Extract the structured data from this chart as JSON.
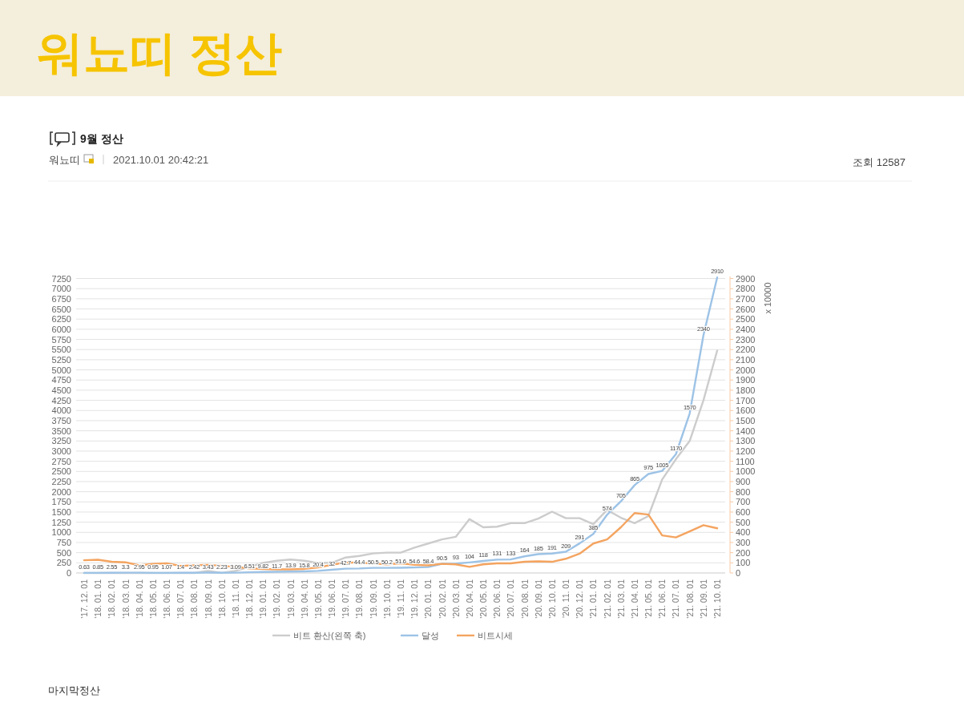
{
  "chart_data": {
    "type": "line",
    "title": "워뇨띠 정산",
    "subtitle": "9월 정산",
    "annotations": [
      "워뇨띠",
      "2021.10.01 20:42:21",
      "조회 12587",
      "마지막정산"
    ],
    "categories": [
      "'17. 12. 01",
      "'18. 01. 01",
      "'18. 02. 01",
      "'18. 03. 01",
      "'18. 04. 01",
      "'18. 05. 01",
      "'18. 06. 01",
      "'18. 07. 01",
      "'18. 08. 01",
      "'18. 09. 01",
      "'18. 10. 01",
      "'18. 11. 01",
      "'18. 12. 01",
      "'19. 01. 01",
      "'19. 02. 01",
      "'19. 03. 01",
      "'19. 04. 01",
      "'19. 05. 01",
      "'19. 06. 01",
      "'19. 07. 01",
      "'19. 08. 01",
      "'19. 09. 01",
      "'19. 10. 01",
      "'19. 11. 01",
      "'19. 12. 01",
      "'20. 01. 01",
      "'20. 02. 01",
      "'20. 03. 01",
      "'20. 04. 01",
      "'20. 05. 01",
      "'20. 06. 01",
      "'20. 07. 01",
      "'20. 08. 01",
      "'20. 09. 01",
      "'20. 10. 01",
      "'20. 11. 01",
      "'20. 12. 01",
      "'21. 01. 01",
      "'21. 02. 01",
      "'21. 03. 01",
      "'21. 04. 01",
      "'21. 05. 01",
      "'21. 06. 01",
      "'21. 07. 01",
      "'21. 08. 01",
      "'21. 09. 01",
      "'21. 10. 01"
    ],
    "series": [
      {
        "name": "비트 환산(왼쪽 축)",
        "color": "#cccccc",
        "values": [
          0,
          0,
          0,
          0,
          0,
          0,
          0,
          0,
          0,
          50,
          0,
          50,
          150,
          250,
          300,
          330,
          300,
          250,
          250,
          380,
          420,
          480,
          500,
          500,
          625,
          725,
          825,
          890,
          1325,
          1125,
          1140,
          1225,
          1225,
          1340,
          1510,
          1350,
          1350,
          1200,
          1550,
          1360,
          1225,
          1400,
          2300,
          2800,
          3250,
          4250,
          5475
        ]
      },
      {
        "name": "달성",
        "color": "#9dc3e6",
        "axis": "y2",
        "values": [
          0.63,
          0.85,
          2.55,
          3.3,
          2.95,
          0.95,
          1.07,
          1.4,
          2.42,
          3.43,
          2.23,
          3.09,
          6.51,
          9.82,
          11.7,
          13.9,
          15.8,
          20.4,
          32,
          42.7,
          44.4,
          50.5,
          50.2,
          51.6,
          54.6,
          58.4,
          90.5,
          93,
          104,
          118,
          131,
          133,
          164,
          185,
          191,
          209,
          291,
          385,
          574,
          705,
          865,
          975,
          1005,
          1170,
          1570,
          2340,
          2910
        ],
        "value_labels": [
          "0.63",
          "0.85",
          "2.55",
          "3.3",
          "2.95",
          "0.95",
          "1.07",
          "1.4",
          "2.42",
          "3.43",
          "2.23",
          "3.09",
          "6.51",
          "9.82",
          "11.7",
          "13.9",
          "15.8",
          "20.4",
          "32",
          "42.7",
          "44.4",
          "50.5",
          "50.2",
          "51.6",
          "54.6",
          "58.4",
          "90.5",
          "93",
          "104",
          "118",
          "131",
          "133",
          "164",
          "185",
          "191",
          "209",
          "291",
          "385",
          "574",
          "705",
          "865",
          "975",
          "1005",
          "1170",
          "1570",
          "2340",
          "2910"
        ]
      },
      {
        "name": "비트시세",
        "color": "#f4a460",
        "axis": "y2",
        "values": [
          125,
          130,
          110,
          105,
          75,
          90,
          95,
          70,
          75,
          80,
          70,
          60,
          45,
          40,
          35,
          35,
          40,
          55,
          80,
          105,
          100,
          95,
          85,
          95,
          80,
          75,
          90,
          85,
          60,
          85,
          95,
          95,
          110,
          115,
          110,
          140,
          190,
          290,
          330,
          450,
          590,
          575,
          370,
          350,
          410,
          470,
          440
        ]
      }
    ],
    "ylim": [
      0,
      7300
    ],
    "yticks": [
      0,
      250,
      500,
      750,
      1000,
      1250,
      1500,
      1750,
      2000,
      2250,
      2500,
      2750,
      3000,
      3250,
      3500,
      3750,
      4000,
      4250,
      4500,
      4750,
      5000,
      5250,
      5500,
      5750,
      6000,
      6250,
      6500,
      6750,
      7000,
      7250
    ],
    "y2lim": [
      0,
      2920
    ],
    "y2ticks": [
      0,
      100,
      200,
      300,
      400,
      500,
      600,
      700,
      800,
      900,
      1000,
      1100,
      1200,
      1300,
      1400,
      1500,
      1600,
      1700,
      1800,
      1900,
      2000,
      2100,
      2200,
      2300,
      2400,
      2500,
      2600,
      2700,
      2800,
      2900
    ],
    "y2label": "x 10000",
    "grid": "y",
    "legend": "bottom"
  }
}
